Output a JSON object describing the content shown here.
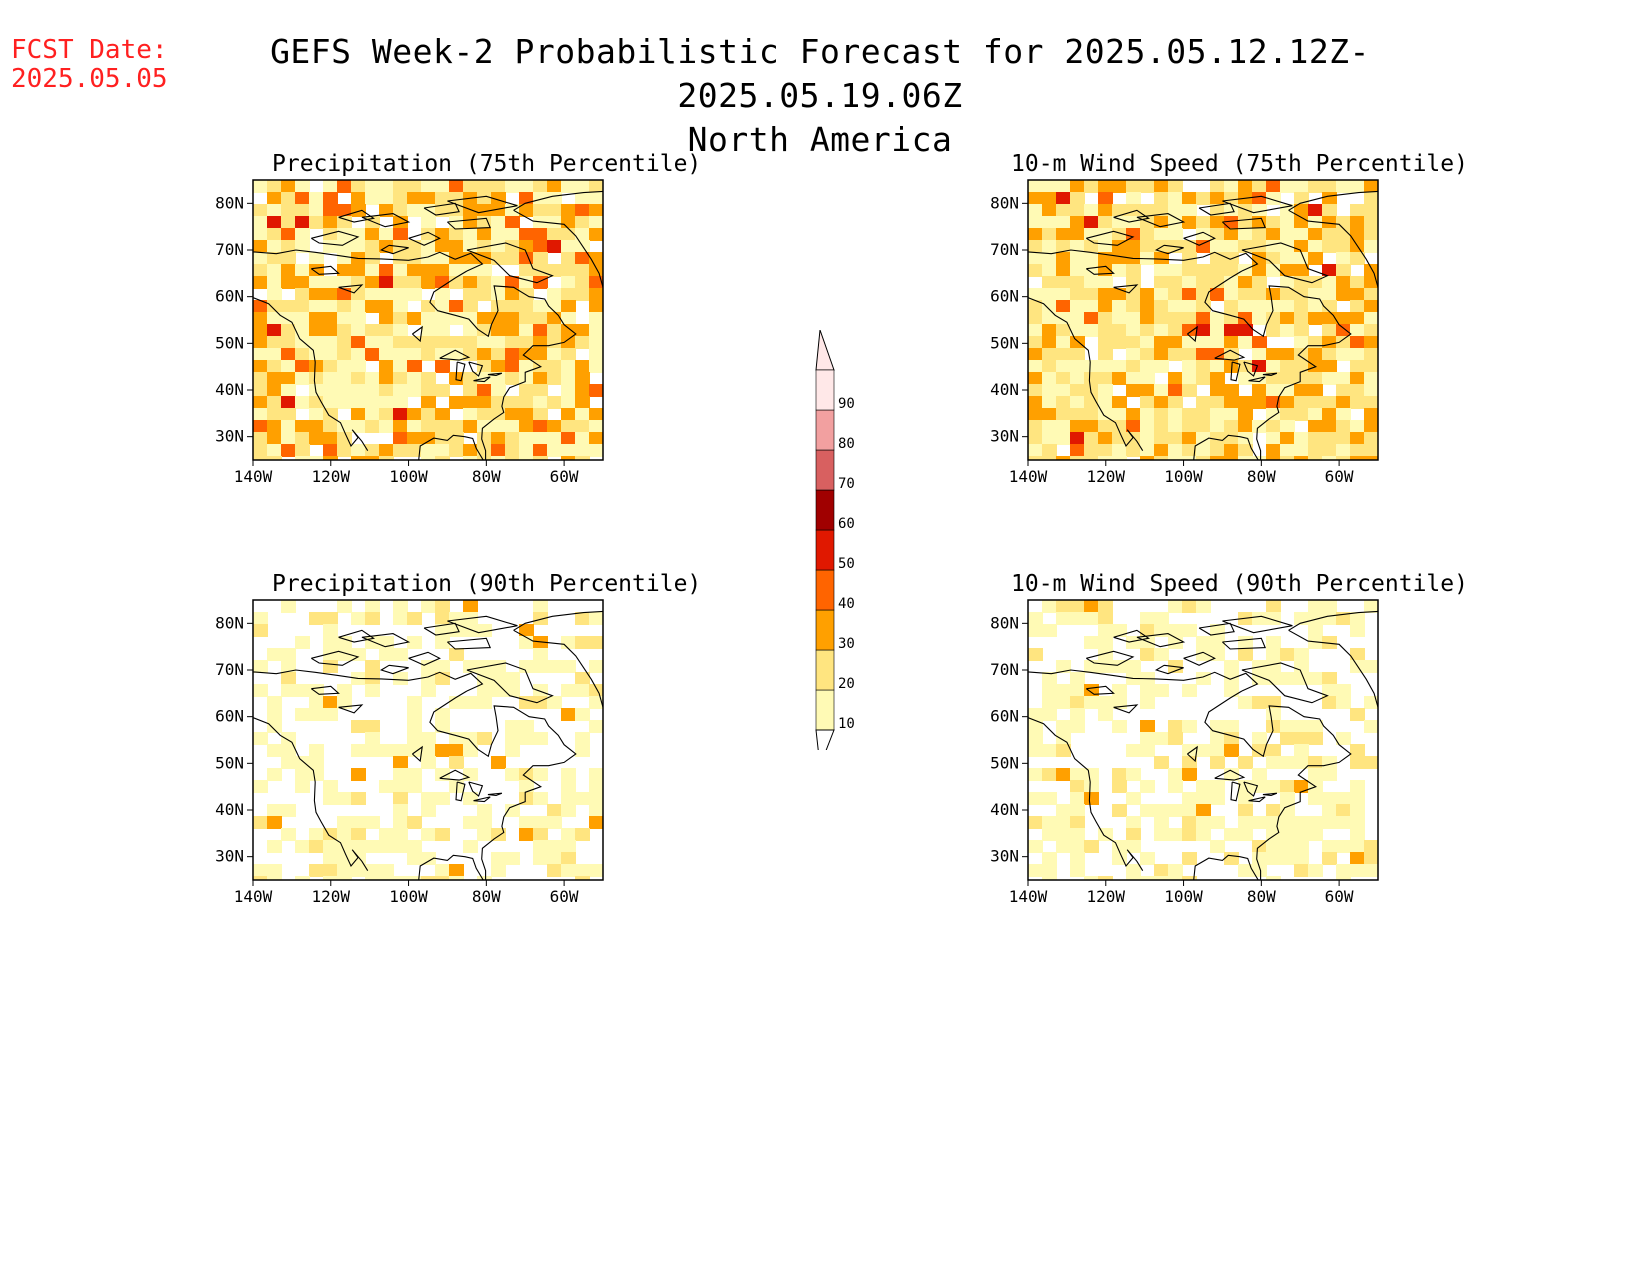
{
  "forecast_date": {
    "label": "FCST Date:",
    "value": "2025.05.05"
  },
  "title": {
    "line1": "GEFS Week-2 Probabilistic Forecast for 2025.05.12.12Z-2025.05.19.06Z",
    "line2": "North America"
  },
  "axes": {
    "lat_ticks": [
      "80N",
      "70N",
      "60N",
      "50N",
      "40N",
      "30N"
    ],
    "lon_ticks": [
      "140W",
      "120W",
      "100W",
      "80W",
      "60W"
    ]
  },
  "colorbar": {
    "levels": [
      "10",
      "20",
      "30",
      "40",
      "50",
      "60",
      "70",
      "80",
      "90"
    ],
    "colors": [
      "#fffab5",
      "#ffe580",
      "#ffa000",
      "#ff6400",
      "#e01800",
      "#a00000",
      "#d86060",
      "#f2a0a0",
      "#ffe8e8"
    ]
  },
  "panels": [
    {
      "id": "precip75",
      "title": "Precipitation (75th Percentile)",
      "intensity": "high",
      "theme": "precip"
    },
    {
      "id": "wind75",
      "title": "10-m Wind Speed (75th Percentile)",
      "intensity": "high",
      "theme": "wind"
    },
    {
      "id": "precip90",
      "title": "Precipitation (90th Percentile)",
      "intensity": "low",
      "theme": "precip"
    },
    {
      "id": "wind90",
      "title": "10-m Wind Speed (90th Percentile)",
      "intensity": "low",
      "theme": "wind"
    }
  ]
}
